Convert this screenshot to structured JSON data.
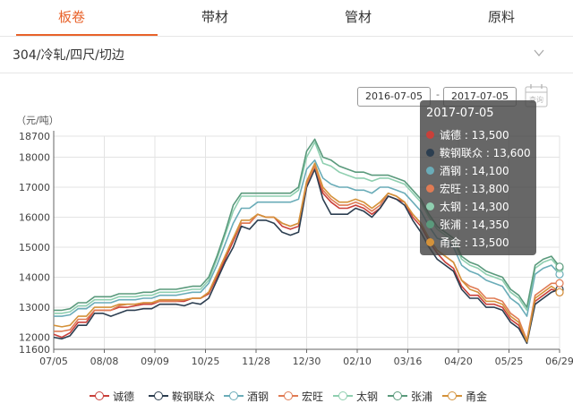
{
  "tabs": [
    {
      "label": "板卷",
      "active": true
    },
    {
      "label": "带材",
      "active": false
    },
    {
      "label": "管材",
      "active": false
    },
    {
      "label": "原料",
      "active": false
    }
  ],
  "selector": {
    "label": "304/冷轧/四尺/切边",
    "icon": "chevron-down-icon"
  },
  "date_range": {
    "start": "2016-07-05",
    "separator": "-",
    "end": "2017-07-05",
    "query_label": "查询"
  },
  "chart_data": {
    "type": "line",
    "ylabel": "（元/吨）",
    "ylim": [
      11600,
      18700
    ],
    "yticks": [
      11600,
      12000,
      13000,
      14000,
      15000,
      16000,
      17000,
      18000,
      18700
    ],
    "x_tick_labels": [
      "07/05",
      "08/08",
      "09/09",
      "10/25",
      "11/28",
      "12/30",
      "02/10",
      "03/16",
      "04/20",
      "05/25",
      "06/29"
    ],
    "grid": true,
    "legend_position": "bottom",
    "series": [
      {
        "name": "诚德",
        "color": "#c9403a",
        "values": [
          12100,
          12000,
          12150,
          12500,
          12500,
          12900,
          12900,
          12900,
          13000,
          13000,
          13050,
          13100,
          13100,
          13200,
          13200,
          13200,
          13200,
          13300,
          13300,
          13450,
          14000,
          14600,
          15200,
          15800,
          15800,
          16100,
          16000,
          16000,
          15700,
          15600,
          15700,
          17100,
          17600,
          16800,
          16500,
          16300,
          16300,
          16400,
          16300,
          16100,
          16300,
          16700,
          16600,
          16500,
          16000,
          15700,
          15200,
          14800,
          14500,
          14300,
          13700,
          13400,
          13400,
          13100,
          13100,
          13000,
          12600,
          12400,
          11850,
          13200,
          13400,
          13600,
          13500
        ]
      },
      {
        "name": "鞍钢联众",
        "color": "#2c3e50",
        "values": [
          12000,
          11950,
          12050,
          12400,
          12400,
          12800,
          12800,
          12700,
          12800,
          12900,
          12900,
          12950,
          12950,
          13100,
          13100,
          13100,
          13050,
          13150,
          13100,
          13300,
          13900,
          14500,
          15000,
          15700,
          15600,
          15900,
          15900,
          15800,
          15500,
          15400,
          15500,
          17000,
          17600,
          16600,
          16100,
          16100,
          16100,
          16300,
          16200,
          16000,
          16300,
          16700,
          16600,
          16400,
          15900,
          15500,
          15000,
          14600,
          14400,
          14200,
          13600,
          13300,
          13300,
          13000,
          13000,
          12900,
          12500,
          12300,
          11800,
          13100,
          13300,
          13500,
          13600
        ]
      },
      {
        "name": "酒钢",
        "color": "#6aacb8",
        "values": [
          12700,
          12700,
          12750,
          12950,
          12950,
          13150,
          13150,
          13150,
          13250,
          13250,
          13250,
          13300,
          13300,
          13400,
          13400,
          13400,
          13450,
          13500,
          13500,
          13800,
          14400,
          15100,
          15800,
          16300,
          16300,
          16500,
          16500,
          16500,
          16500,
          16500,
          16600,
          17600,
          17900,
          17300,
          17100,
          17000,
          17000,
          16900,
          16900,
          16800,
          17000,
          17000,
          16900,
          16800,
          16500,
          16200,
          15700,
          15300,
          15200,
          15000,
          14400,
          14200,
          14100,
          13900,
          13800,
          13700,
          13300,
          13100,
          12700,
          14100,
          14300,
          14400,
          14100
        ]
      },
      {
        "name": "宏旺",
        "color": "#e07b54",
        "values": [
          12200,
          12200,
          12250,
          12600,
          12600,
          12900,
          12900,
          12900,
          13050,
          13100,
          13100,
          13150,
          13150,
          13200,
          13200,
          13200,
          13250,
          13300,
          13300,
          13500,
          14100,
          14700,
          15300,
          15800,
          15800,
          16100,
          16000,
          16000,
          15800,
          15700,
          15800,
          17100,
          17700,
          16900,
          16600,
          16400,
          16400,
          16500,
          16400,
          16200,
          16400,
          16800,
          16700,
          16500,
          16100,
          15800,
          15300,
          14900,
          14700,
          14500,
          13900,
          13700,
          13600,
          13300,
          13300,
          13200,
          12800,
          12600,
          11900,
          13400,
          13600,
          13800,
          13800
        ]
      },
      {
        "name": "太钢",
        "color": "#8fcfb0",
        "values": [
          12800,
          12800,
          12850,
          13050,
          13050,
          13250,
          13250,
          13250,
          13350,
          13350,
          13350,
          13400,
          13400,
          13500,
          13500,
          13500,
          13550,
          13600,
          13600,
          13900,
          14600,
          15400,
          16200,
          16700,
          16700,
          16700,
          16700,
          16700,
          16700,
          16700,
          16900,
          18000,
          18500,
          17800,
          17700,
          17500,
          17400,
          17300,
          17300,
          17200,
          17300,
          17300,
          17200,
          17100,
          16800,
          16500,
          16000,
          15600,
          15400,
          15200,
          14600,
          14400,
          14300,
          14100,
          14000,
          13900,
          13500,
          13300,
          12900,
          14300,
          14500,
          14600,
          14300
        ]
      },
      {
        "name": "张浦",
        "color": "#5a9a7c",
        "values": [
          12900,
          12900,
          12950,
          13150,
          13150,
          13350,
          13350,
          13350,
          13450,
          13450,
          13450,
          13500,
          13500,
          13600,
          13600,
          13600,
          13650,
          13700,
          13700,
          14000,
          14700,
          15500,
          16400,
          16800,
          16800,
          16800,
          16800,
          16800,
          16800,
          16800,
          17000,
          18200,
          18600,
          18000,
          17900,
          17700,
          17600,
          17500,
          17500,
          17400,
          17400,
          17400,
          17300,
          17200,
          16900,
          16600,
          16100,
          15700,
          15500,
          15300,
          14700,
          14500,
          14400,
          14200,
          14100,
          14000,
          13600,
          13400,
          13000,
          14400,
          14600,
          14700,
          14350
        ]
      },
      {
        "name": "甬金",
        "color": "#d4923a",
        "values": [
          12400,
          12350,
          12400,
          12700,
          12700,
          13000,
          13000,
          13000,
          13100,
          13100,
          13100,
          13150,
          13150,
          13250,
          13250,
          13250,
          13250,
          13300,
          13300,
          13500,
          14100,
          14700,
          15300,
          15900,
          15900,
          16100,
          16000,
          16000,
          15800,
          15700,
          15800,
          17200,
          17800,
          17000,
          16700,
          16500,
          16500,
          16600,
          16500,
          16300,
          16500,
          16800,
          16700,
          16500,
          16100,
          15800,
          15300,
          14900,
          14700,
          14500,
          13900,
          13600,
          13500,
          13200,
          13200,
          13100,
          12700,
          12500,
          11850,
          13300,
          13500,
          13700,
          13500
        ]
      }
    ]
  },
  "tooltip": {
    "date": "2017-07-05",
    "rows": [
      {
        "name": "诚德",
        "value": "13,500"
      },
      {
        "name": "鞍钢联众",
        "value": "13,600"
      },
      {
        "name": "酒钢",
        "value": "14,100"
      },
      {
        "name": "宏旺",
        "value": "13,800"
      },
      {
        "name": "太钢",
        "value": "14,300"
      },
      {
        "name": "张浦",
        "value": "14,350"
      },
      {
        "name": "甬金",
        "value": "13,500"
      }
    ]
  }
}
